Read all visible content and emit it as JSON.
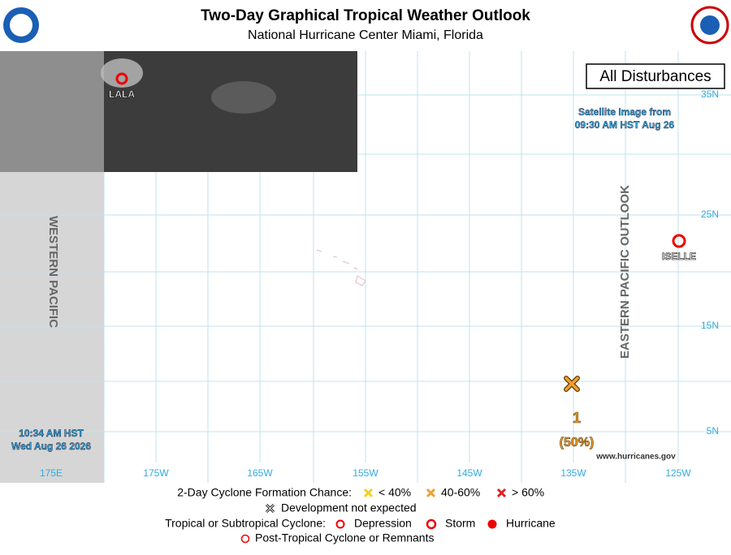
{
  "header": {
    "title": "Two-Day Graphical Tropical Weather Outlook",
    "subtitle": "National Hurricane Center  Miami, Florida"
  },
  "map": {
    "panel_label": "All Disturbances",
    "satellite_note": [
      "Satellite Image from",
      "09:30 AM HST Aug 26"
    ],
    "western_region": "WESTERN PACIFIC",
    "eastern_region": "EASTERN PACIFIC OUTLOOK",
    "issued": [
      "10:34 AM HST",
      "Wed Aug 26 2026"
    ],
    "latitude_labels": [
      "35N",
      "25N",
      "15N",
      "5N"
    ],
    "longitude_labels": [
      "175E",
      "175W",
      "165W",
      "155W",
      "145W",
      "135W",
      "125W"
    ],
    "cyclones": [
      {
        "name": "LALA"
      },
      {
        "name": "ISELLE"
      }
    ],
    "disturbance": {
      "id": "1",
      "chance": "(50%)"
    },
    "website": "www.hurricanes.gov"
  },
  "legend": {
    "formation_title": "2-Day Cyclone Formation Chance:",
    "formation_levels": [
      "< 40%",
      "40-60%",
      "> 60%"
    ],
    "not_expected": "Development not expected",
    "cyclone_title": "Tropical or Subtropical Cyclone:",
    "cyclone_types": [
      "Depression",
      "Storm",
      "Hurricane"
    ],
    "post_tropical": "Post-Tropical Cyclone or Remnants"
  }
}
